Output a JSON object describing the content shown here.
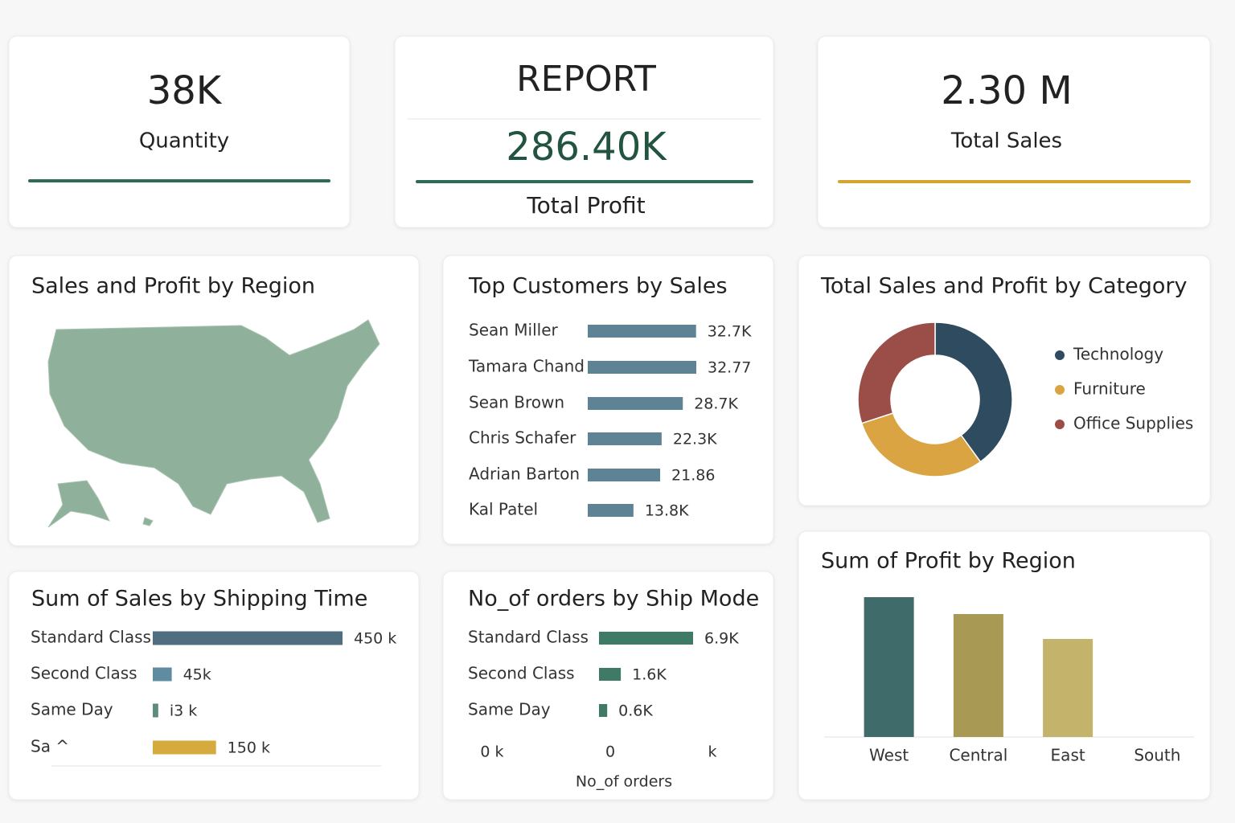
{
  "kpis": [
    {
      "value": "38K",
      "label": "Quantity"
    },
    {
      "heading": "REPORT",
      "value": "286.40K",
      "label": "Total Profit"
    },
    {
      "value": "2.30 M",
      "label": "Total Sales"
    }
  ],
  "map": {
    "title": "Sales and Profit by Region"
  },
  "chart_data": [
    {
      "type": "hbar",
      "title": "Top Customers by Sales",
      "categories": [
        "Sean Miller",
        "Tamara Chand",
        "Sean Brown",
        "Chris Schafer",
        "Adrian Barton",
        "Kal Patel"
      ],
      "values": [
        32.7,
        32.77,
        28.7,
        22.3,
        21.86,
        13.8
      ],
      "value_labels": [
        "32.7K",
        "32.77",
        "28.7K",
        "22.3K",
        "21.86",
        "13.8K"
      ],
      "color": "#5d8394"
    },
    {
      "type": "donut",
      "title": "Total Sales and Profit by Category",
      "categories": [
        "Technology",
        "Furniture",
        "Office Supplies"
      ],
      "values": [
        40,
        30,
        30
      ],
      "colors": [
        "#2f4b5f",
        "#d9a441",
        "#9b4d47"
      ]
    },
    {
      "type": "hbar",
      "title": "Sum of Sales by Shipping Time",
      "categories": [
        "Standard Class",
        "Second Class",
        "Same Day",
        "Sa ^"
      ],
      "values": [
        450,
        45,
        13,
        150
      ],
      "value_labels": [
        "450 k",
        "45k",
        "i3 k",
        "150 k"
      ],
      "colors": [
        "#4f6e80",
        "#5f8ca0",
        "#5b8c7c",
        "#d4ab3c"
      ]
    },
    {
      "type": "hbar",
      "title": "No_of orders by Ship Mode",
      "categories": [
        "Standard Class",
        "Second Class",
        "Same Day"
      ],
      "values": [
        6.9,
        1.6,
        0.6
      ],
      "value_labels": [
        "6.9K",
        "1.6K",
        "0.6K"
      ],
      "color": "#3f7a66",
      "x_axis_texts": [
        "0 k",
        "0",
        "k"
      ],
      "xlabel": "No_of orders"
    },
    {
      "type": "bar",
      "title": "Sum of Profit by Region",
      "categories": [
        "West",
        "Central",
        "East",
        "South"
      ],
      "values": [
        174,
        153,
        122,
        0
      ],
      "colors": [
        "#3f6b6b",
        "#a89a55",
        "#c4b36a",
        "#c4b36a"
      ],
      "ylim": [
        0,
        180
      ]
    }
  ]
}
